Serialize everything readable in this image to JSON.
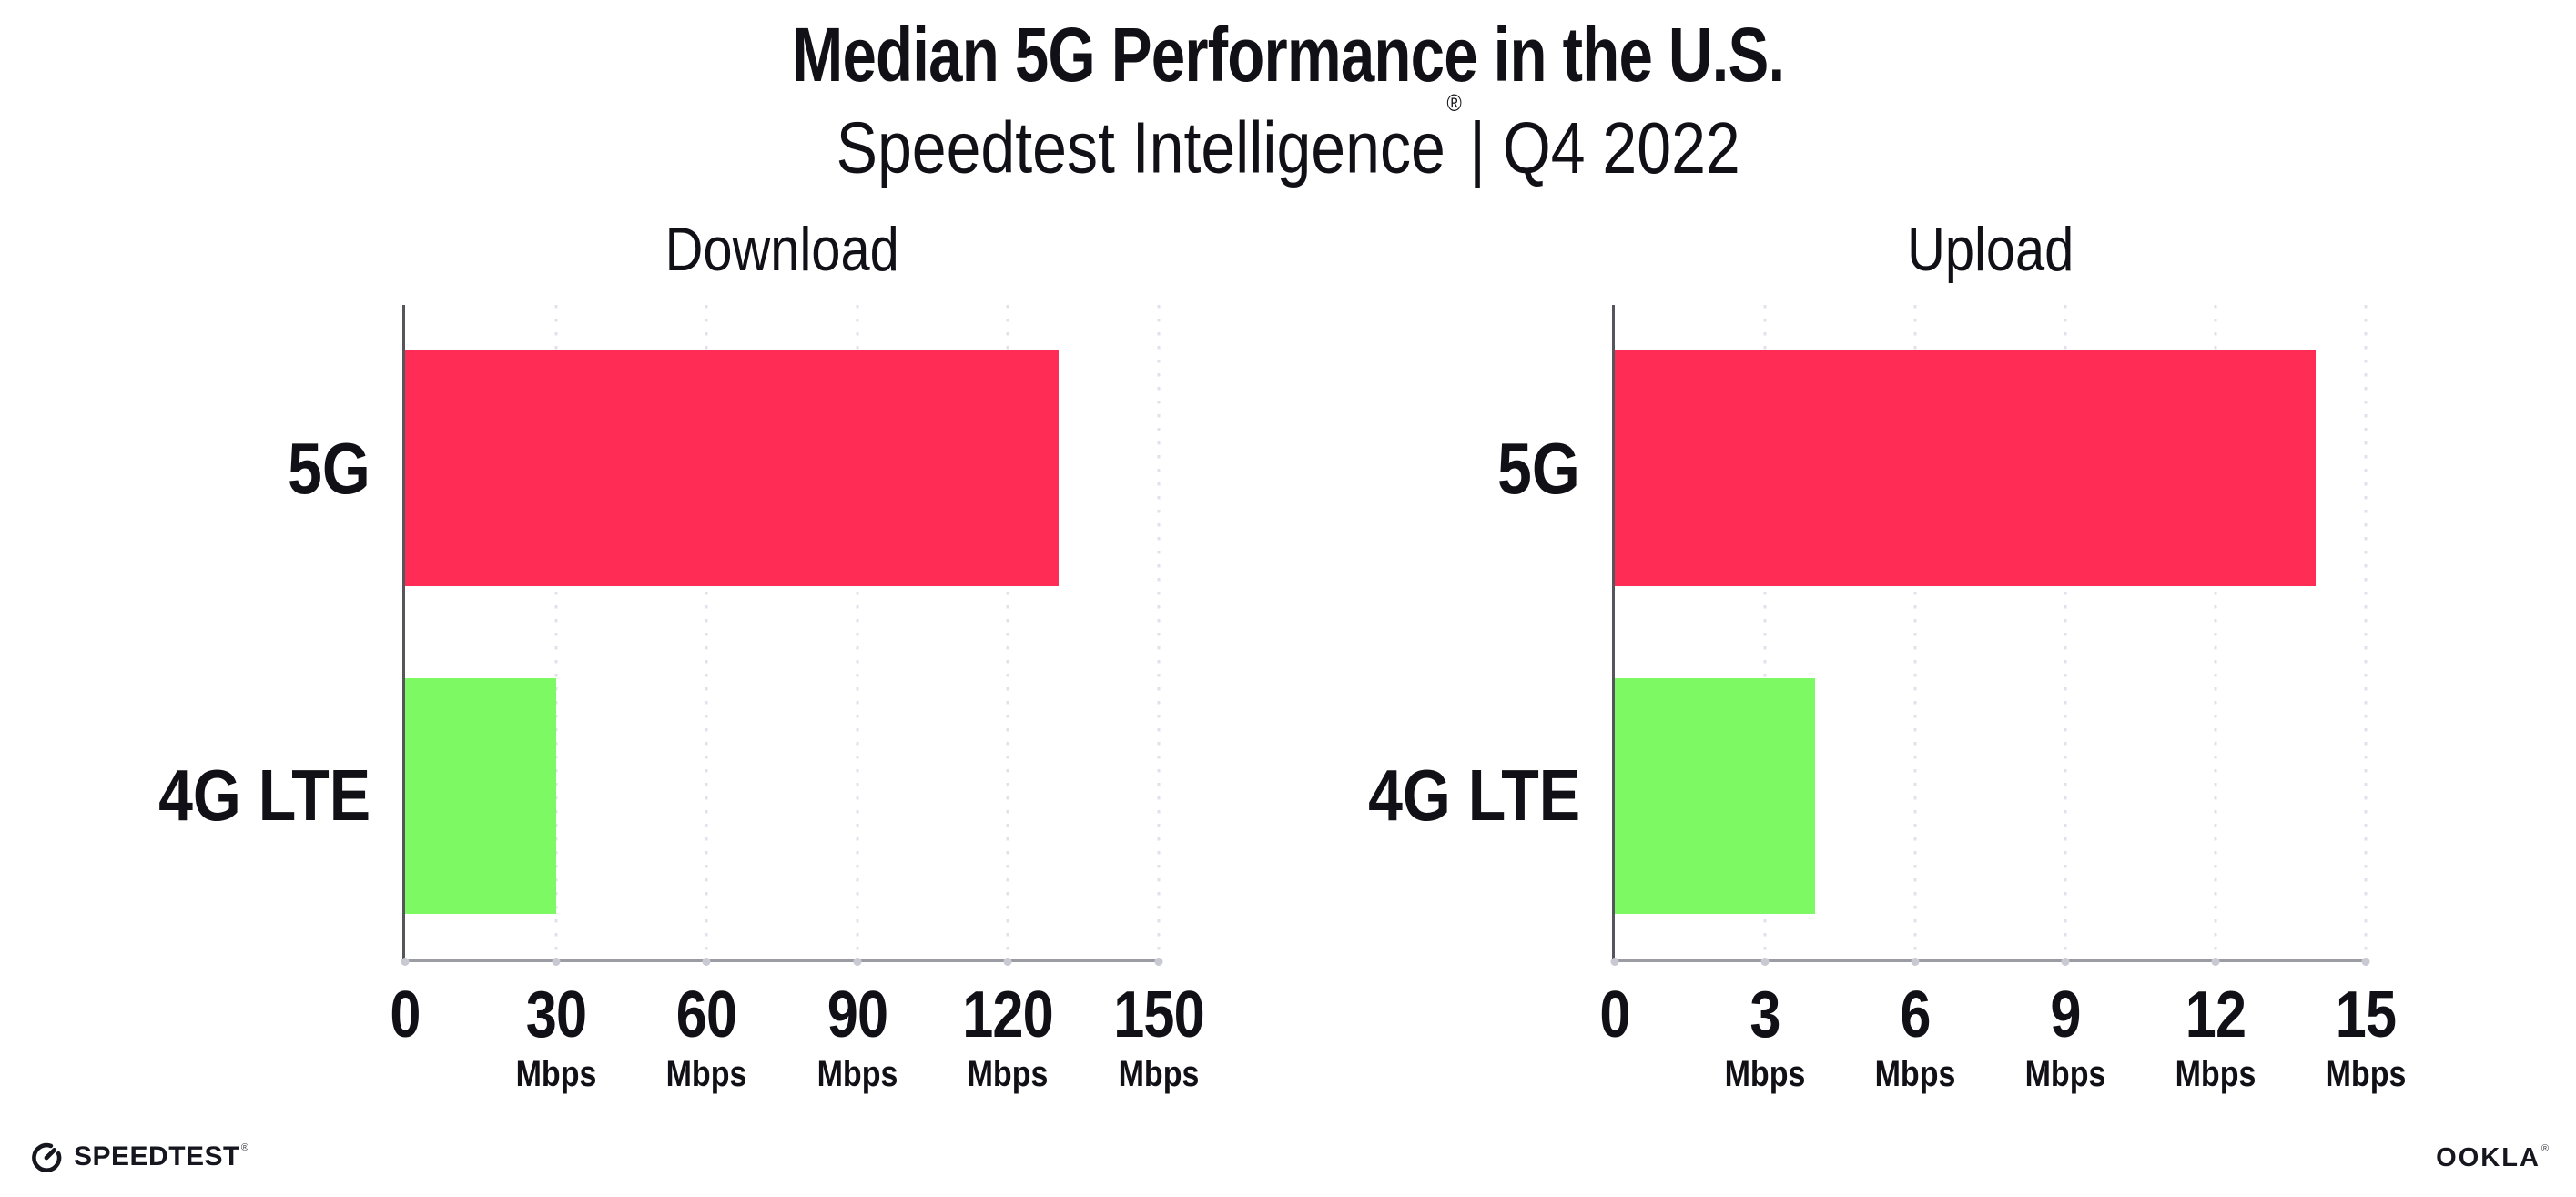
{
  "header": {
    "title": "Median 5G Performance in the U.S.",
    "subtitle_brand": "Speedtest Intelligence",
    "subtitle_reg": "®",
    "subtitle_rest": "| Q4 2022"
  },
  "footer": {
    "speedtest_label": "SPEEDTEST",
    "speedtest_reg": "®",
    "ookla_label": "OOKLA",
    "ookla_reg": "®"
  },
  "colors": {
    "bar_5g": "#FF2D55",
    "bar_4g_lte": "#7DFA63",
    "axis_left": "#55555e",
    "axis_bottom": "#9b9ba4",
    "axis_dot": "#c9c9d4",
    "gridline": "#e1e1ec",
    "text": "#101016"
  },
  "chart_data": [
    {
      "type": "bar",
      "orientation": "horizontal",
      "title": "Download",
      "categories": [
        "5G",
        "4G LTE"
      ],
      "values": [
        130,
        30
      ],
      "bar_colors": [
        "#FF2D55",
        "#7DFA63"
      ],
      "unit": "Mbps",
      "xlim": [
        0,
        150
      ],
      "ticks": [
        0,
        30,
        60,
        90,
        120,
        150
      ],
      "grid": true,
      "legend": "none"
    },
    {
      "type": "bar",
      "orientation": "horizontal",
      "title": "Upload",
      "categories": [
        "5G",
        "4G LTE"
      ],
      "values": [
        14,
        4
      ],
      "bar_colors": [
        "#FF2D55",
        "#7DFA63"
      ],
      "unit": "Mbps",
      "xlim": [
        0,
        15
      ],
      "ticks": [
        0,
        3,
        6,
        9,
        12,
        15
      ],
      "grid": true,
      "legend": "none"
    }
  ]
}
